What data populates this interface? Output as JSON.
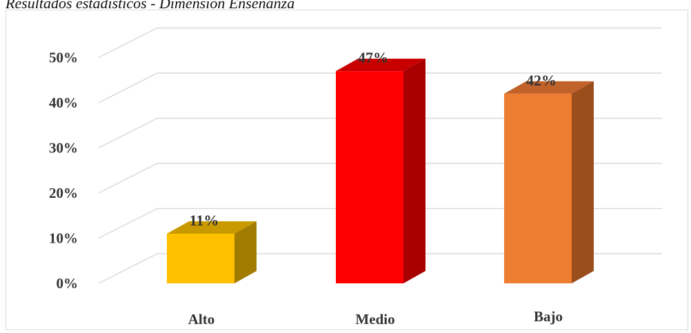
{
  "caption": "Resultados estadísticos - Dimensión Enseñanza",
  "chart_data": {
    "type": "bar",
    "style": "3d-column",
    "categories": [
      "Alto",
      "Medio",
      "Bajo"
    ],
    "values": [
      11,
      47,
      42
    ],
    "data_labels": [
      "11%",
      "47%",
      "42%"
    ],
    "ylim": [
      0,
      50
    ],
    "yticks": [
      0,
      10,
      20,
      30,
      40,
      50
    ],
    "ytick_labels": [
      "0%",
      "10%",
      "20%",
      "30%",
      "40%",
      "50%"
    ],
    "grid": true,
    "legend": "none",
    "colors": {
      "Alto": {
        "front": "#ffc000",
        "side": "#a17c00",
        "top": "#c99a00"
      },
      "Medio": {
        "front": "#ff0000",
        "side": "#a80000",
        "top": "#c80000"
      },
      "Bajo": {
        "front": "#ed7d31",
        "side": "#9a4e1c",
        "top": "#c0622a"
      },
      "grid": "#d9d9d9",
      "text": "#333333"
    }
  }
}
